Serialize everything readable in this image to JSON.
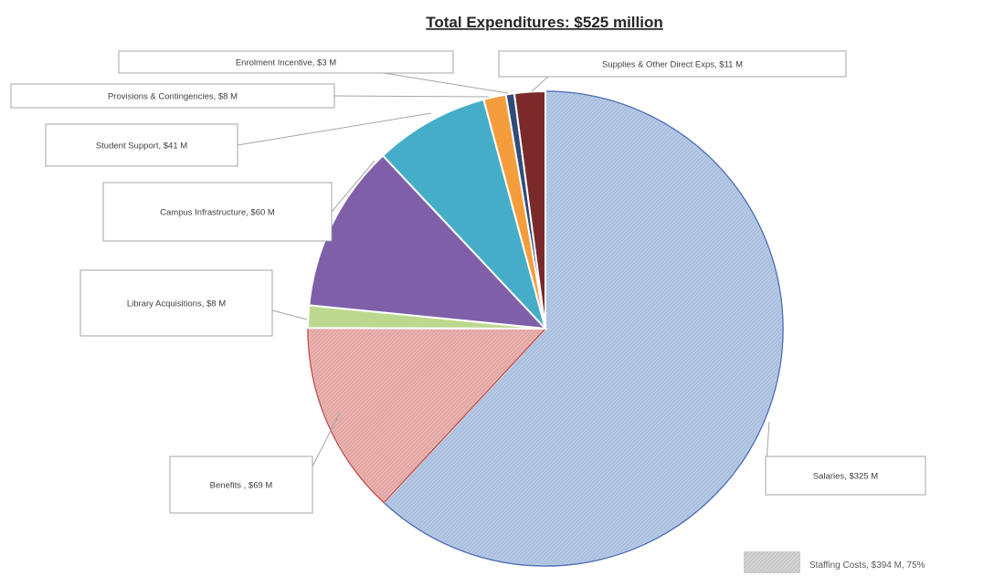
{
  "chart_data": {
    "type": "pie",
    "title": "Total Expenditures: $525 million",
    "slices": [
      {
        "label": "Salaries, $325 M",
        "value": 325,
        "color": "#a9bfdf",
        "edge": "#4f71b8",
        "hatched": true
      },
      {
        "label": "Benefits , $69 M",
        "value": 69,
        "color": "#e3a5a2",
        "edge": "#c0504d",
        "hatched": true
      },
      {
        "label": "Library Acquisitions, $8 M",
        "value": 8,
        "color": "#bcd88f",
        "edge": "#9bbb59",
        "hatched": false
      },
      {
        "label": "Campus Infrastructure, $60 M",
        "value": 60,
        "color": "#7f5fa7",
        "edge": "#7f5fa7",
        "hatched": false
      },
      {
        "label": "Student Support, $41 M",
        "value": 41,
        "color": "#46adc8",
        "edge": "#46adc8",
        "hatched": false
      },
      {
        "label": "Provisions & Contingencies, $8 M",
        "value": 8,
        "color": "#f59d3c",
        "edge": "#f59d3c",
        "hatched": false
      },
      {
        "label": "Enrolment Incentive, $3 M",
        "value": 3,
        "color": "#2f4c7a",
        "edge": "#2f4c7a",
        "hatched": false
      },
      {
        "label": "Supplies & Other Direct Exps, $11 M",
        "value": 11,
        "color": "#7a2a2a",
        "edge": "#7a2a2a",
        "hatched": false
      }
    ],
    "legend": [
      {
        "label": "Staffing Costs, $394 M, 75%",
        "pattern": "hatched-gray"
      }
    ],
    "legend_position": "bottom-right"
  }
}
